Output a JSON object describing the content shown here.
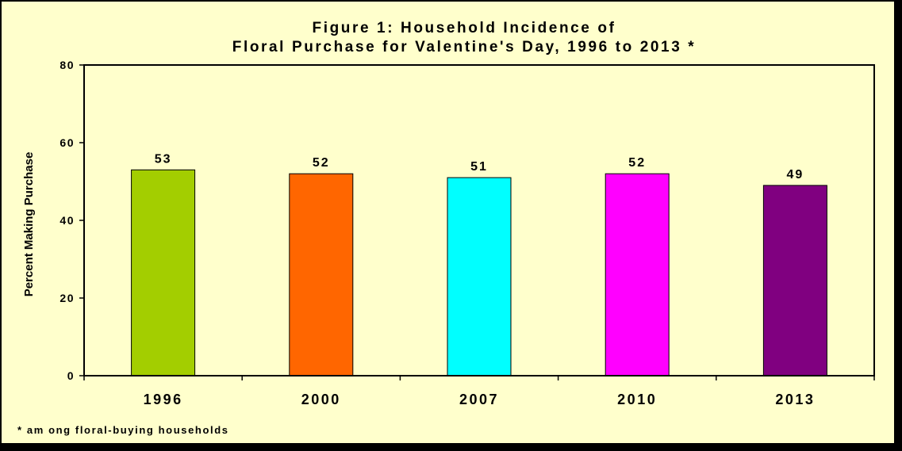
{
  "chart_data": {
    "type": "bar",
    "title_lines": [
      "Figure 1:  Household Incidence of",
      "Floral Purchase for Valentine's Day, 1996 to 2013 *"
    ],
    "xlabel": "",
    "ylabel": "Percent Making Purchase",
    "categories": [
      "1996",
      "2000",
      "2007",
      "2010",
      "2013"
    ],
    "values": [
      53,
      52,
      51,
      52,
      49
    ],
    "data_labels": [
      "53",
      "52",
      "51",
      "52",
      "49"
    ],
    "bar_colors": [
      "#A3CE00",
      "#FF6600",
      "#00FFFF",
      "#FF00FF",
      "#800080"
    ],
    "ylim": [
      0,
      80
    ],
    "yticks": [
      0,
      20,
      40,
      60,
      80
    ],
    "ytick_labels": [
      "0",
      "20",
      "40",
      "60",
      "80"
    ],
    "grid": false,
    "legend": "none",
    "footnote": "* am ong floral-buying households",
    "background_color": "#FFFFCC",
    "plot_background_color": "#FFFFCC"
  }
}
